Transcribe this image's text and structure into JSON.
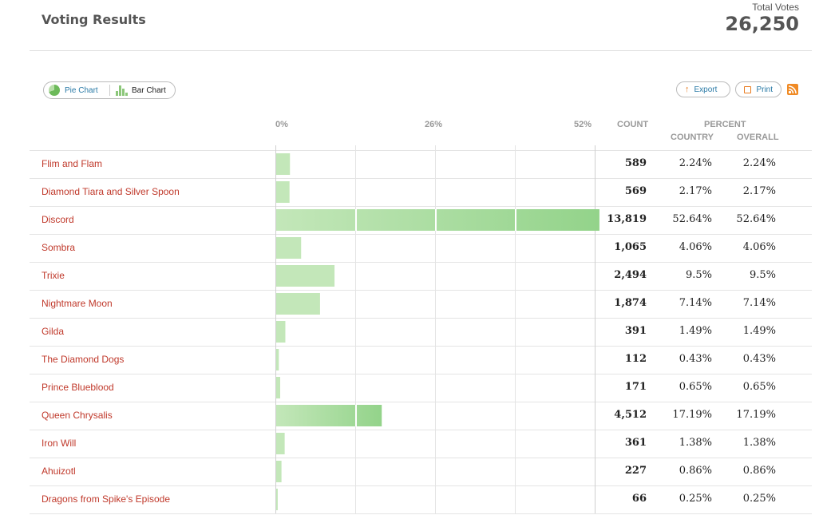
{
  "header": {
    "title": "Voting Results",
    "total_label": "Total Votes",
    "total_value": "26,250"
  },
  "toolbar": {
    "pie_label": "Pie Chart",
    "bar_label": "Bar Chart",
    "export_label": "Export",
    "print_label": "Print"
  },
  "table": {
    "count_header": "COUNT",
    "percent_header": "PERCENT",
    "country_header": "COUNTRY",
    "overall_header": "OVERALL"
  },
  "chart_data": {
    "type": "bar",
    "orientation": "horizontal",
    "axis_ticks": [
      "0%",
      "26%",
      "52%"
    ],
    "xlim": [
      0,
      52
    ],
    "grid": true,
    "categories": [
      "Flim and Flam",
      "Diamond Tiara and Silver Spoon",
      "Discord",
      "Sombra",
      "Trixie",
      "Nightmare Moon",
      "Gilda",
      "The Diamond Dogs",
      "Prince Blueblood",
      "Queen Chrysalis",
      "Iron Will",
      "Ahuizotl",
      "Dragons from Spike's Episode"
    ],
    "values": [
      2.24,
      2.17,
      52.64,
      4.06,
      9.5,
      7.14,
      1.49,
      0.43,
      0.65,
      17.19,
      1.38,
      0.86,
      0.25
    ],
    "counts": [
      "589",
      "569",
      "13,819",
      "1,065",
      "2,494",
      "1,874",
      "391",
      "112",
      "171",
      "4,512",
      "361",
      "227",
      "66"
    ],
    "country_pct": [
      "2.24%",
      "2.17%",
      "52.64%",
      "4.06%",
      "9.5%",
      "7.14%",
      "1.49%",
      "0.43%",
      "0.65%",
      "17.19%",
      "1.38%",
      "0.86%",
      "0.25%"
    ],
    "overall_pct": [
      "2.24%",
      "2.17%",
      "52.64%",
      "4.06%",
      "9.5%",
      "7.14%",
      "1.49%",
      "0.43%",
      "0.65%",
      "17.19%",
      "1.38%",
      "0.86%",
      "0.25%"
    ],
    "bar_color": "#c3e7b9",
    "bar_color_dark": "#93d38a",
    "label_color": "#c0392b"
  }
}
